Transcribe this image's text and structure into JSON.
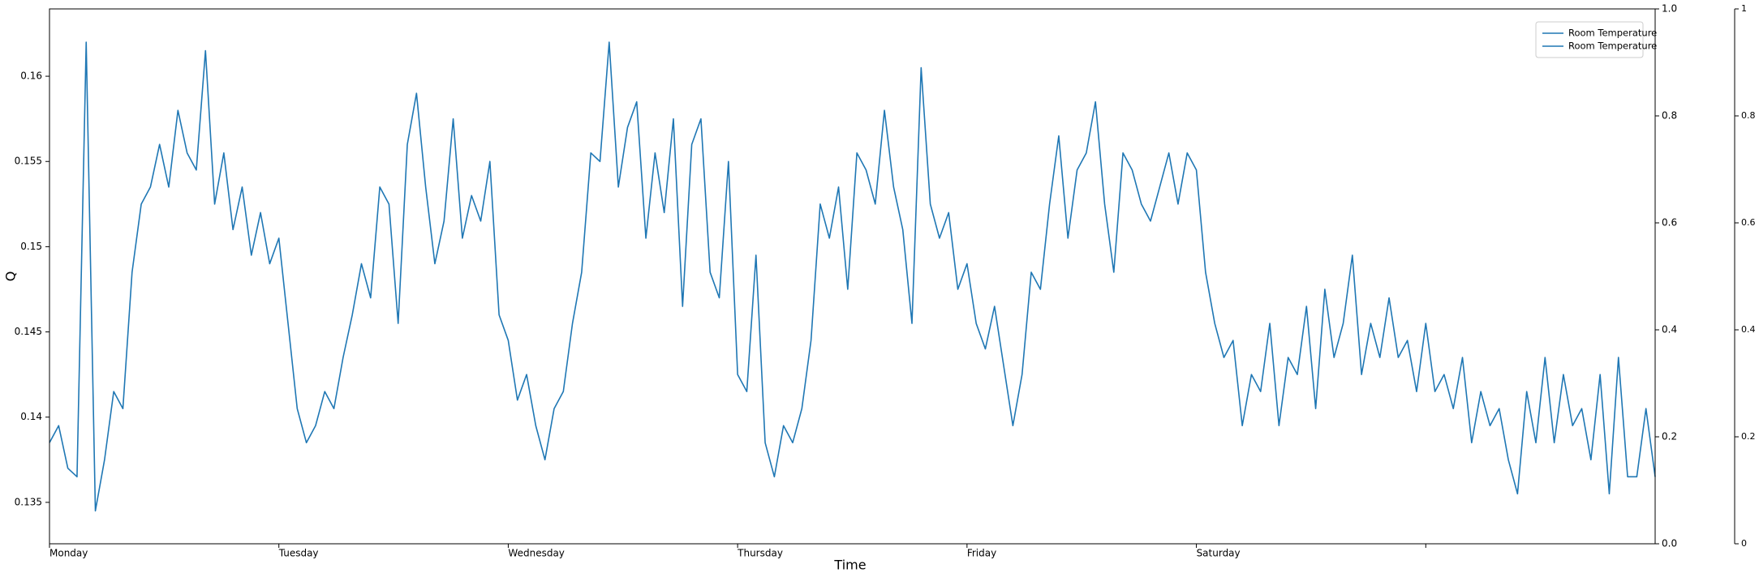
{
  "chart_data": {
    "type": "line",
    "xlabel": "Time",
    "ylabel": "Q",
    "x": [
      0,
      0.04,
      0.08,
      0.12,
      0.16,
      0.2,
      0.24,
      0.28,
      0.32,
      0.36,
      0.4,
      0.44,
      0.48,
      0.52,
      0.56,
      0.6,
      0.64,
      0.68,
      0.72,
      0.76,
      0.8,
      0.84,
      0.88,
      0.92,
      0.96,
      1,
      1.04,
      1.08,
      1.12,
      1.16,
      1.2,
      1.24,
      1.28,
      1.32,
      1.36,
      1.4,
      1.44,
      1.48,
      1.52,
      1.56,
      1.6,
      1.64,
      1.68,
      1.72,
      1.76,
      1.8,
      1.84,
      1.88,
      1.92,
      1.96,
      2,
      2.04,
      2.08,
      2.12,
      2.16,
      2.2,
      2.24,
      2.28,
      2.32,
      2.36,
      2.4,
      2.44,
      2.48,
      2.52,
      2.56,
      2.6,
      2.64,
      2.68,
      2.72,
      2.76,
      2.8,
      2.84,
      2.88,
      2.92,
      2.96,
      3,
      3.04,
      3.08,
      3.12,
      3.16,
      3.2,
      3.24,
      3.28,
      3.32,
      3.36,
      3.4,
      3.44,
      3.48,
      3.52,
      3.56,
      3.6,
      3.64,
      3.68,
      3.72,
      3.76,
      3.8,
      3.84,
      3.88,
      3.92,
      3.96,
      4,
      4.04,
      4.08,
      4.12,
      4.16,
      4.2,
      4.24,
      4.28,
      4.32,
      4.36,
      4.4,
      4.44,
      4.48,
      4.52,
      4.56,
      4.6,
      4.64,
      4.68,
      4.72,
      4.76,
      4.8,
      4.84,
      4.88,
      4.92,
      4.96,
      5,
      5.04,
      5.08,
      5.12,
      5.16,
      5.2,
      5.24,
      5.28,
      5.32,
      5.36,
      5.4,
      5.44,
      5.48,
      5.52,
      5.56,
      5.6,
      5.64,
      5.68,
      5.72,
      5.76,
      5.8,
      5.84,
      5.88,
      5.92,
      5.96,
      6,
      6.04,
      6.08,
      6.12,
      6.16,
      6.2,
      6.24,
      6.28,
      6.32,
      6.36,
      6.4,
      6.44,
      6.48,
      6.52,
      6.56,
      6.6,
      6.64,
      6.68,
      6.72,
      6.76,
      6.8,
      6.84,
      6.88,
      6.92,
      6.96,
      7
    ],
    "series": [
      {
        "name": "Room Temperature",
        "color": "#1f77b4",
        "values": [
          0.1385,
          0.1395,
          0.137,
          0.1365,
          0.162,
          0.1345,
          0.1375,
          0.1415,
          0.1405,
          0.1485,
          0.1525,
          0.1535,
          0.156,
          0.1535,
          0.158,
          0.1555,
          0.1545,
          0.1615,
          0.1525,
          0.1555,
          0.151,
          0.1535,
          0.1495,
          0.152,
          0.149,
          0.1505,
          0.1455,
          0.1405,
          0.1385,
          0.1395,
          0.1415,
          0.1405,
          0.1435,
          0.146,
          0.149,
          0.147,
          0.1535,
          0.1525,
          0.1455,
          0.156,
          0.159,
          0.1535,
          0.149,
          0.1515,
          0.1575,
          0.1505,
          0.153,
          0.1515,
          0.155,
          0.146,
          0.1445,
          0.141,
          0.1425,
          0.1395,
          0.1375,
          0.1405,
          0.1415,
          0.1455,
          0.1485,
          0.1555,
          0.155,
          0.162,
          0.1535,
          0.157,
          0.1585,
          0.1505,
          0.1555,
          0.152,
          0.1575,
          0.1465,
          0.156,
          0.1575,
          0.1485,
          0.147,
          0.155,
          0.1425,
          0.1415,
          0.1495,
          0.1385,
          0.1365,
          0.1395,
          0.1385,
          0.1405,
          0.1445,
          0.1525,
          0.1505,
          0.1535,
          0.1475,
          0.1555,
          0.1545,
          0.1525,
          0.158,
          0.1535,
          0.151,
          0.1455,
          0.1605,
          0.1525,
          0.1505,
          0.152,
          0.1475,
          0.149,
          0.1455,
          0.144,
          0.1465,
          0.143,
          0.1395,
          0.1425,
          0.1485,
          0.1475,
          0.1525,
          0.1565,
          0.1505,
          0.1545,
          0.1555,
          0.1585,
          0.1525,
          0.1485,
          0.1555,
          0.1545,
          0.1525,
          0.1515,
          0.1535,
          0.1555,
          0.1525,
          0.1555,
          0.1545,
          0.1485,
          0.1455,
          0.1435,
          0.1445,
          0.1395,
          0.1425,
          0.1415,
          0.1455,
          0.1395,
          0.1435,
          0.1425,
          0.1465,
          0.1405,
          0.1475,
          0.1435,
          0.1455,
          0.1495,
          0.1425,
          0.1455,
          0.1435,
          0.147,
          0.1435,
          0.1445,
          0.1415,
          0.1455,
          0.1415,
          0.1425,
          0.1405,
          0.1435,
          0.1385,
          0.1415,
          0.1395,
          0.1405,
          0.1375,
          0.1355,
          0.1415,
          0.1385,
          0.1435,
          0.1385,
          0.1425,
          0.1395,
          0.1405,
          0.1375,
          0.1425,
          0.1355,
          0.1435,
          0.1365,
          0.1365,
          0.1405,
          0.1365
        ]
      },
      {
        "name": "Room Temperature",
        "color": "#1f77b4",
        "axis": "y2",
        "values": [
          null,
          null,
          null,
          null,
          null,
          null,
          null,
          null,
          null,
          null,
          null,
          null,
          null,
          null,
          null,
          null,
          null,
          null,
          null,
          null,
          null,
          null,
          null,
          null,
          null,
          null,
          null,
          null,
          null,
          null,
          null,
          null,
          null,
          null,
          null,
          null,
          null,
          null,
          null,
          null,
          null,
          null,
          null,
          null,
          null,
          null,
          null,
          null,
          null,
          null,
          null,
          null,
          null,
          null,
          null,
          null,
          null,
          null,
          null,
          null,
          null,
          null,
          null,
          null,
          null,
          null,
          null,
          null,
          null,
          null,
          null,
          null,
          null,
          null,
          null,
          null,
          null,
          null,
          null,
          null,
          null,
          null,
          null,
          null,
          null,
          null,
          null,
          null,
          null,
          null,
          null,
          null,
          null,
          null,
          null,
          null,
          null,
          null,
          null,
          null,
          null,
          null,
          null,
          null,
          null,
          null,
          null,
          null,
          null,
          null,
          null,
          null,
          null,
          null,
          null,
          null,
          null,
          null,
          null,
          null,
          null,
          null,
          null,
          null,
          null,
          null,
          null,
          null,
          null,
          null,
          null,
          null,
          null,
          null,
          null,
          null,
          null,
          null,
          null,
          null,
          null,
          null,
          null,
          null,
          null,
          null,
          null,
          null,
          null,
          null,
          null,
          null,
          null,
          null,
          null,
          null,
          null,
          null,
          null,
          null,
          null,
          null,
          null,
          null,
          null,
          null,
          null,
          null,
          null,
          null,
          null,
          null,
          null,
          null,
          null,
          null
        ]
      }
    ],
    "xlim": [
      0,
      7
    ],
    "xticks": [
      {
        "value": 0,
        "label": "Monday"
      },
      {
        "value": 1,
        "label": "Tuesday"
      },
      {
        "value": 2,
        "label": "Wednesday"
      },
      {
        "value": 3,
        "label": "Thursday"
      },
      {
        "value": 4,
        "label": "Friday"
      },
      {
        "value": 5,
        "label": "Saturday"
      },
      {
        "value": 6,
        "label": null
      }
    ],
    "ylim": [
      0.13257,
      0.16395
    ],
    "yticks": [
      0.135,
      0.14,
      0.145,
      0.15,
      0.155,
      0.16
    ],
    "y2lim": [
      0,
      1
    ],
    "y2ticks": [
      {
        "value": 0,
        "label": "0.0"
      },
      0.2,
      0.4,
      0.6,
      0.8,
      {
        "value": 1,
        "label": "1.0"
      }
    ],
    "y3lim": [
      0,
      1
    ],
    "y3ticks": [
      0,
      0.2,
      0.4,
      0.6,
      0.8,
      1
    ],
    "legend": "upper right"
  }
}
